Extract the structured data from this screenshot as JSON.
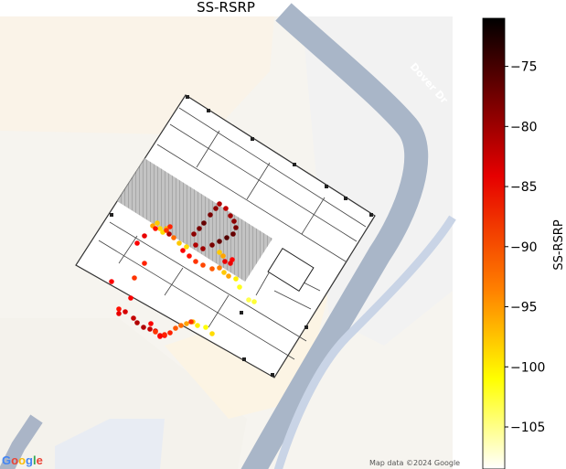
{
  "title": "SS-RSRP",
  "map": {
    "road_label": "Dover Dr",
    "logo_text": "Google",
    "attribution": "Map data ©2024 Google"
  },
  "colorbar": {
    "label": "SS-RSRP",
    "min": -108.5,
    "max": -71,
    "ticks": [
      -75,
      -80,
      -85,
      -90,
      -95,
      -100,
      -105
    ],
    "tick_labels": [
      "−75",
      "−80",
      "−85",
      "−90",
      "−95",
      "−100",
      "−105"
    ],
    "colormap": "hot",
    "colors": [
      "#000000",
      "#e60000",
      "#ff7f00",
      "#ffff00",
      "#ffffff"
    ]
  },
  "chart_data": {
    "type": "scatter",
    "title": "SS-RSRP",
    "series": [
      {
        "name": "SS-RSRP",
        "values": [
          -86,
          -84,
          -83,
          -83,
          -85,
          -96,
          -95,
          -99,
          -101,
          -102,
          -103,
          -102,
          -101,
          -99,
          -98,
          -100,
          -101,
          -102,
          -103,
          -104,
          -103,
          -102,
          -100,
          -99,
          -95,
          -94,
          -92,
          -91,
          -90,
          -88,
          -84,
          -86,
          -82,
          -80,
          -78,
          -79,
          -83,
          -84,
          -89,
          -92,
          -93,
          -94,
          -93,
          -92,
          -95,
          -95,
          -96,
          -97,
          -98,
          -99,
          -99,
          -98,
          -97,
          -96,
          -95,
          -93,
          -90,
          -89,
          -86,
          -84,
          -82,
          -81,
          -83,
          -92,
          -95,
          -94,
          -95,
          -93,
          -92,
          -84,
          -86,
          -95,
          -96,
          -96
        ]
      }
    ]
  }
}
